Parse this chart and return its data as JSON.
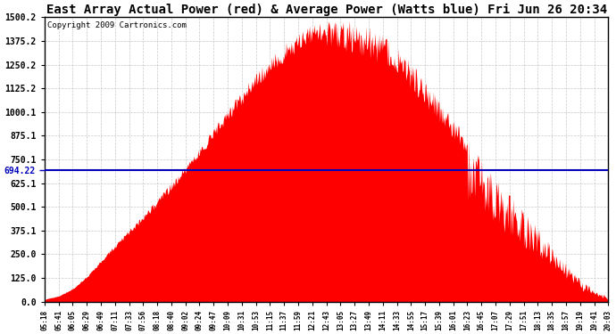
{
  "title": "East Array Actual Power (red) & Average Power (Watts blue) Fri Jun 26 20:34",
  "copyright": "Copyright 2009 Cartronics.com",
  "avg_power": 694.22,
  "y_max": 1500.2,
  "y_min": 0.0,
  "y_ticks": [
    0.0,
    125.0,
    250.0,
    375.1,
    500.1,
    625.1,
    750.1,
    875.1,
    1000.1,
    1125.2,
    1250.2,
    1375.2,
    1500.2
  ],
  "x_labels": [
    "05:18",
    "05:41",
    "06:05",
    "06:29",
    "06:49",
    "07:11",
    "07:33",
    "07:56",
    "08:18",
    "08:40",
    "09:02",
    "09:24",
    "09:47",
    "10:09",
    "10:31",
    "10:53",
    "11:15",
    "11:37",
    "11:59",
    "12:21",
    "12:43",
    "13:05",
    "13:27",
    "13:49",
    "14:11",
    "14:33",
    "14:55",
    "15:17",
    "15:39",
    "16:01",
    "16:23",
    "16:45",
    "17:07",
    "17:29",
    "17:51",
    "18:13",
    "18:35",
    "18:57",
    "19:19",
    "19:41",
    "20:03"
  ],
  "fill_color": "#FF0000",
  "line_color": "#0000BB",
  "background_color": "#FFFFFF",
  "grid_color": "#BBBBBB",
  "title_fontsize": 10,
  "copyright_fontsize": 6.5
}
